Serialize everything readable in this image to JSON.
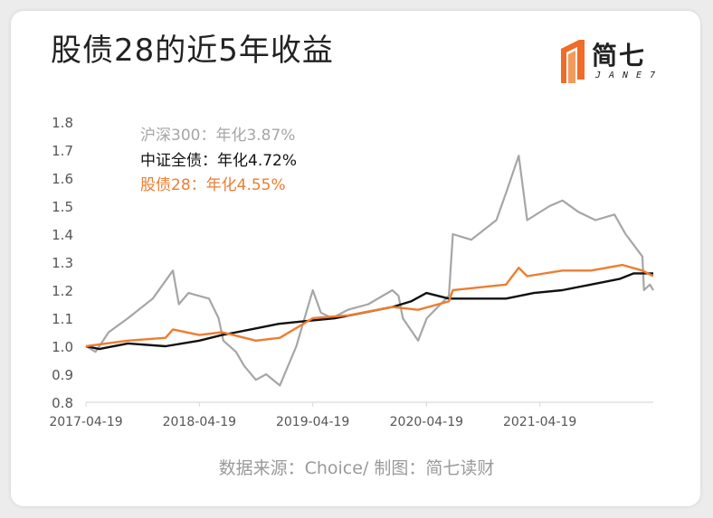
{
  "title": "股债28的近5年收益",
  "logo": {
    "text": "简七",
    "sub": "JANE7"
  },
  "source": "数据来源：Choice/ 制图：简七读财",
  "chart_data": {
    "type": "line",
    "x_tick_labels": [
      "2017-04-19",
      "2018-04-19",
      "2019-04-19",
      "2020-04-19",
      "2021-04-19"
    ],
    "y_ticks": [
      "0.8",
      "0.9",
      "1.0",
      "1.1",
      "1.2",
      "1.3",
      "1.4",
      "1.5",
      "1.6",
      "1.7",
      "1.8"
    ],
    "ylim": [
      0.8,
      1.8
    ],
    "xlim": [
      "2017-04-19",
      "2022-04-19"
    ],
    "grid": false,
    "legend_position": "top-left",
    "series": [
      {
        "name": "沪深300",
        "legend_text": "沪深300：年化3.87%",
        "color": "#a6a6a6",
        "points": [
          [
            "2017-04-19",
            1.0
          ],
          [
            "2017-05-20",
            0.98
          ],
          [
            "2017-07-01",
            1.05
          ],
          [
            "2017-09-01",
            1.1
          ],
          [
            "2017-11-20",
            1.17
          ],
          [
            "2018-01-24",
            1.27
          ],
          [
            "2018-02-12",
            1.15
          ],
          [
            "2018-03-15",
            1.19
          ],
          [
            "2018-05-20",
            1.17
          ],
          [
            "2018-06-20",
            1.1
          ],
          [
            "2018-07-05",
            1.02
          ],
          [
            "2018-08-15",
            0.98
          ],
          [
            "2018-09-10",
            0.93
          ],
          [
            "2018-10-18",
            0.88
          ],
          [
            "2018-11-20",
            0.9
          ],
          [
            "2019-01-03",
            0.86
          ],
          [
            "2019-02-25",
            1.0
          ],
          [
            "2019-04-19",
            1.2
          ],
          [
            "2019-05-15",
            1.12
          ],
          [
            "2019-06-20",
            1.1
          ],
          [
            "2019-08-10",
            1.13
          ],
          [
            "2019-10-15",
            1.15
          ],
          [
            "2019-12-31",
            1.2
          ],
          [
            "2020-01-20",
            1.18
          ],
          [
            "2020-02-03",
            1.1
          ],
          [
            "2020-03-23",
            1.02
          ],
          [
            "2020-04-20",
            1.1
          ],
          [
            "2020-06-30",
            1.18
          ],
          [
            "2020-07-13",
            1.4
          ],
          [
            "2020-09-10",
            1.38
          ],
          [
            "2020-11-30",
            1.45
          ],
          [
            "2021-01-01",
            1.55
          ],
          [
            "2021-02-10",
            1.68
          ],
          [
            "2021-03-09",
            1.45
          ],
          [
            "2021-05-20",
            1.5
          ],
          [
            "2021-07-01",
            1.52
          ],
          [
            "2021-08-20",
            1.48
          ],
          [
            "2021-10-15",
            1.45
          ],
          [
            "2021-12-15",
            1.47
          ],
          [
            "2022-01-20",
            1.4
          ],
          [
            "2022-03-15",
            1.32
          ],
          [
            "2022-03-20",
            1.2
          ],
          [
            "2022-04-08",
            1.22
          ],
          [
            "2022-04-19",
            1.2
          ]
        ]
      },
      {
        "name": "中证全债",
        "legend_text": "中证全债：年化4.72%",
        "color": "#111111",
        "points": [
          [
            "2017-04-19",
            1.0
          ],
          [
            "2017-06-01",
            0.99
          ],
          [
            "2017-09-01",
            1.01
          ],
          [
            "2017-12-31",
            1.0
          ],
          [
            "2018-04-19",
            1.02
          ],
          [
            "2018-07-01",
            1.04
          ],
          [
            "2018-10-01",
            1.06
          ],
          [
            "2018-12-31",
            1.08
          ],
          [
            "2019-03-31",
            1.09
          ],
          [
            "2019-06-30",
            1.1
          ],
          [
            "2019-09-30",
            1.12
          ],
          [
            "2019-12-31",
            1.14
          ],
          [
            "2020-02-29",
            1.16
          ],
          [
            "2020-04-19",
            1.19
          ],
          [
            "2020-06-30",
            1.17
          ],
          [
            "2020-09-30",
            1.17
          ],
          [
            "2020-12-31",
            1.17
          ],
          [
            "2021-03-31",
            1.19
          ],
          [
            "2021-06-30",
            1.2
          ],
          [
            "2021-09-30",
            1.22
          ],
          [
            "2021-12-31",
            1.24
          ],
          [
            "2022-02-15",
            1.26
          ],
          [
            "2022-04-19",
            1.26
          ]
        ]
      },
      {
        "name": "股债28",
        "legend_text": "股债28：年化4.55%",
        "color": "#ed7d31",
        "points": [
          [
            "2017-04-19",
            1.0
          ],
          [
            "2017-09-01",
            1.02
          ],
          [
            "2017-12-31",
            1.03
          ],
          [
            "2018-01-24",
            1.06
          ],
          [
            "2018-04-19",
            1.04
          ],
          [
            "2018-07-01",
            1.05
          ],
          [
            "2018-10-18",
            1.02
          ],
          [
            "2019-01-03",
            1.03
          ],
          [
            "2019-04-19",
            1.1
          ],
          [
            "2019-08-10",
            1.11
          ],
          [
            "2019-12-31",
            1.14
          ],
          [
            "2020-03-23",
            1.13
          ],
          [
            "2020-06-30",
            1.16
          ],
          [
            "2020-07-13",
            1.2
          ],
          [
            "2020-12-31",
            1.22
          ],
          [
            "2021-02-10",
            1.28
          ],
          [
            "2021-03-09",
            1.25
          ],
          [
            "2021-06-30",
            1.27
          ],
          [
            "2021-09-30",
            1.27
          ],
          [
            "2022-01-10",
            1.29
          ],
          [
            "2022-03-15",
            1.27
          ],
          [
            "2022-04-19",
            1.25
          ]
        ]
      }
    ]
  }
}
